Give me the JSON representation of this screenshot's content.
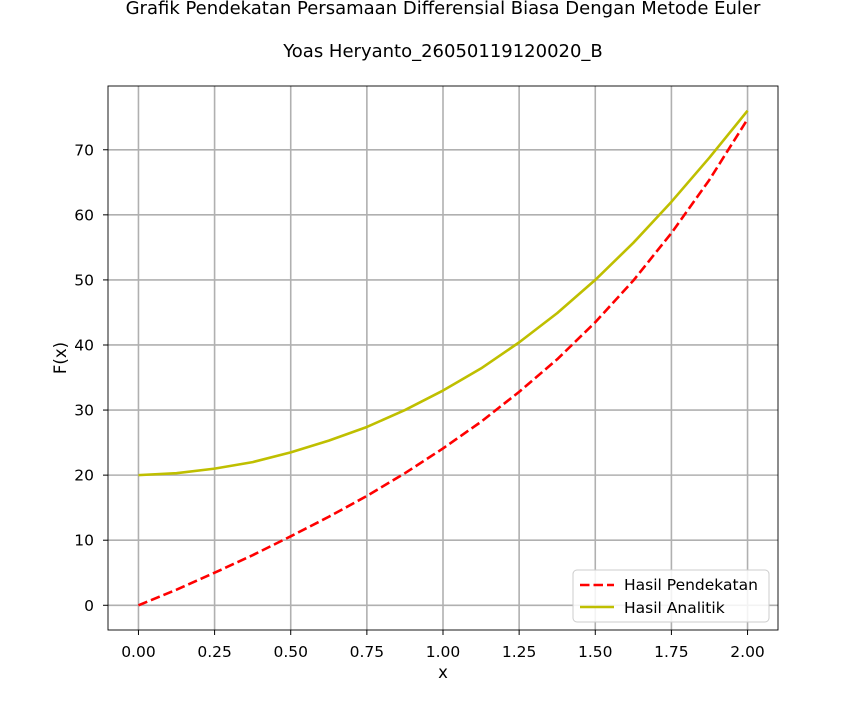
{
  "chart_data": {
    "type": "line",
    "title": "Grafik Pendekatan Persamaan Differensial Biasa Dengan Metode Euler",
    "subtitle": "Yoas Heryanto_26050119120020_B",
    "xlabel": "x",
    "ylabel": "F(x)",
    "xlim": [
      -0.1,
      2.1
    ],
    "ylim": [
      -3.8,
      79.8
    ],
    "xticks": [
      "0.00",
      "0.25",
      "0.50",
      "0.75",
      "1.00",
      "1.25",
      "1.50",
      "1.75",
      "2.00"
    ],
    "yticks": [
      "0",
      "10",
      "20",
      "30",
      "40",
      "50",
      "60",
      "70"
    ],
    "grid": true,
    "legend_position": "lower-right",
    "x": [
      0.0,
      0.125,
      0.25,
      0.375,
      0.5,
      0.625,
      0.75,
      0.875,
      1.0,
      1.125,
      1.25,
      1.375,
      1.5,
      1.625,
      1.75,
      1.875,
      2.0
    ],
    "series": [
      {
        "name": "Hasil Pendekatan",
        "color": "#ff0000",
        "style": "dashed",
        "values": [
          0.0,
          2.4,
          5.0,
          7.7,
          10.6,
          13.6,
          16.8,
          20.3,
          24.1,
          28.2,
          32.8,
          37.8,
          43.5,
          49.9,
          57.2,
          65.4,
          74.7
        ]
      },
      {
        "name": "Hasil Analitik",
        "color": "#bfbf00",
        "style": "solid",
        "values": [
          20.0,
          20.3,
          21.0,
          22.0,
          23.5,
          25.3,
          27.4,
          30.0,
          33.0,
          36.4,
          40.4,
          44.9,
          50.0,
          55.7,
          62.0,
          68.8,
          76.0
        ]
      }
    ]
  }
}
